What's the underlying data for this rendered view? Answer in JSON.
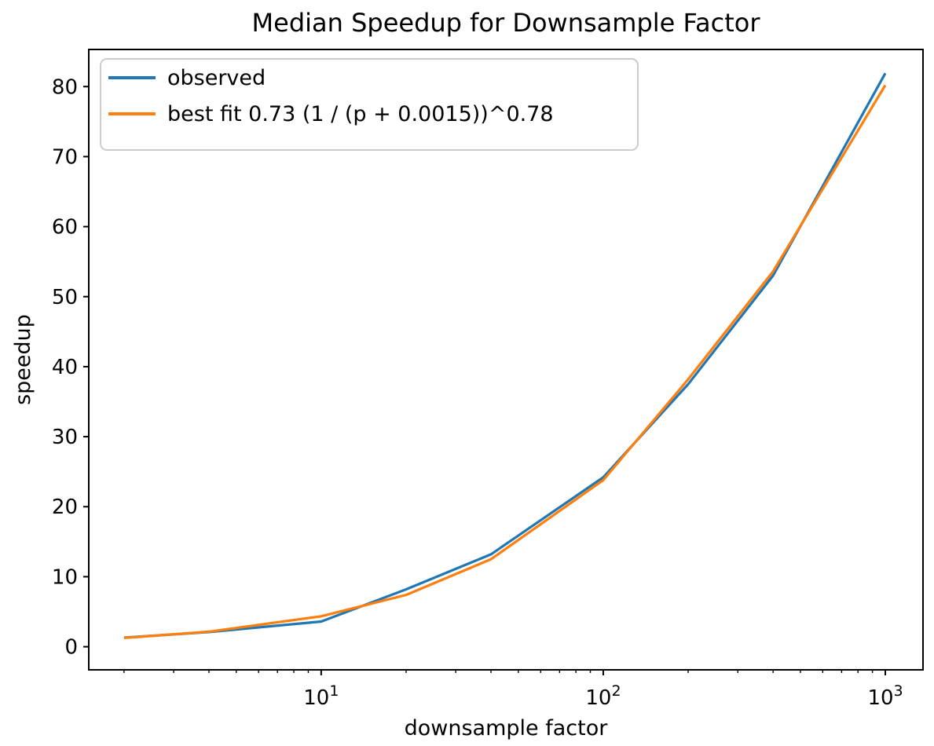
{
  "chart_data": {
    "type": "line",
    "title": "Median Speedup for Downsample Factor",
    "xlabel": "downsample factor",
    "ylabel": "speedup",
    "x_scale": "log",
    "grid": false,
    "legend_position": "upper left",
    "xlim": [
      1.5,
      1360
    ],
    "ylim": [
      -3.3,
      85.3
    ],
    "x": [
      2,
      4,
      10,
      20,
      40,
      100,
      200,
      400,
      1000
    ],
    "series": [
      {
        "name": "observed",
        "color": "#1f77b4",
        "values": [
          1.3,
          2.1,
          3.6,
          8.2,
          13.2,
          24.2,
          37.5,
          53.0,
          81.9
        ]
      },
      {
        "name": "best fit 0.73 (1 / (p + 0.0015))^0.78",
        "color": "#ff7f0e",
        "values": [
          1.25,
          2.15,
          4.35,
          7.4,
          12.5,
          23.8,
          38.2,
          53.6,
          80.2
        ]
      }
    ],
    "y_ticks": [
      0,
      10,
      20,
      30,
      40,
      50,
      60,
      70,
      80
    ],
    "y_tick_labels": [
      "0",
      "10",
      "20",
      "30",
      "40",
      "50",
      "60",
      "70",
      "80"
    ],
    "x_major_ticks": [
      10,
      100,
      1000
    ],
    "x_tick_labels": [
      {
        "base": "10",
        "exp": "1"
      },
      {
        "base": "10",
        "exp": "2"
      },
      {
        "base": "10",
        "exp": "3"
      }
    ]
  },
  "styles": {
    "axis_color": "#000000",
    "text_color": "#000000",
    "legend_border": "#cccccc",
    "legend_background": "#ffffff"
  }
}
